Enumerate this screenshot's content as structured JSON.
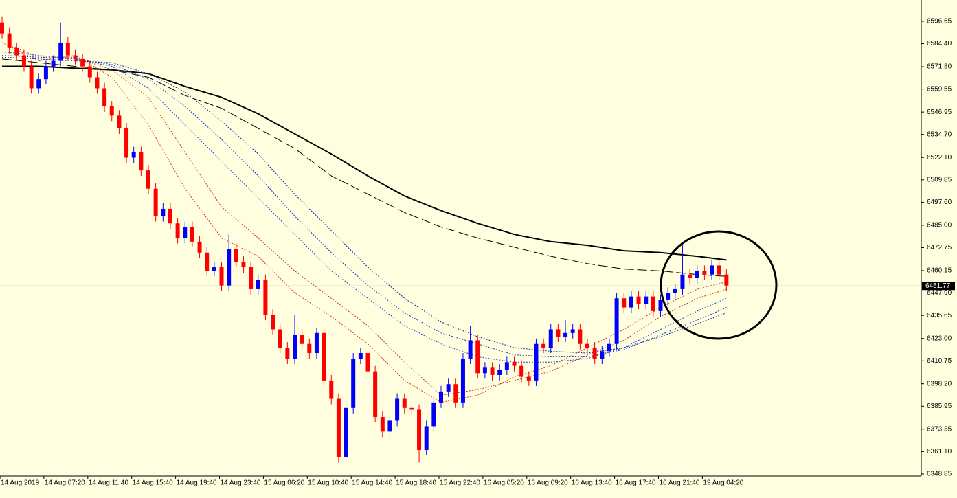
{
  "chart_data": {
    "type": "candlestick",
    "open": [
      6596,
      6590,
      6582,
      6578,
      6572,
      6560,
      6565,
      6572,
      6575,
      6585,
      6578,
      6576,
      6572,
      6566,
      6560,
      6550,
      6545,
      6538,
      6522,
      6525,
      6515,
      6505,
      6490,
      6494,
      6486,
      6478,
      6484,
      6476,
      6470,
      6460,
      6462,
      6452,
      6472,
      6465,
      6462,
      6450,
      6455,
      6436,
      6428,
      6418,
      6412,
      6425,
      6420,
      6415,
      6426,
      6400,
      6390,
      6358,
      6385,
      6412,
      6415,
      6405,
      6380,
      6372,
      6378,
      6390,
      6385,
      6384,
      6362,
      6375,
      6388,
      6394,
      6398,
      6388,
      6412,
      6422,
      6404,
      6407,
      6403,
      6406,
      6410,
      6408,
      6402,
      6400,
      6420,
      6418,
      6428,
      6424,
      6426,
      6428,
      6420,
      6418,
      6412,
      6416,
      6420,
      6445,
      6440,
      6446,
      6442,
      6446,
      6438,
      6444,
      6448,
      6450,
      6458,
      6456,
      6460,
      6458,
      6463,
      6458
    ],
    "high": [
      6599,
      6593,
      6585,
      6581,
      6575,
      6568,
      6575,
      6578,
      6596,
      6588,
      6581,
      6579,
      6575,
      6569,
      6563,
      6553,
      6548,
      6541,
      6528,
      6528,
      6518,
      6508,
      6497,
      6497,
      6489,
      6487,
      6487,
      6479,
      6473,
      6465,
      6465,
      6480,
      6475,
      6468,
      6465,
      6458,
      6458,
      6439,
      6431,
      6421,
      6436,
      6428,
      6423,
      6429,
      6429,
      6403,
      6393,
      6390,
      6415,
      6418,
      6418,
      6408,
      6383,
      6381,
      6393,
      6393,
      6388,
      6387,
      6378,
      6391,
      6397,
      6401,
      6401,
      6415,
      6430,
      6425,
      6410,
      6410,
      6409,
      6413,
      6413,
      6411,
      6405,
      6423,
      6423,
      6431,
      6431,
      6433,
      6431,
      6431,
      6423,
      6421,
      6419,
      6423,
      6448,
      6448,
      6449,
      6449,
      6449,
      6449,
      6447,
      6451,
      6453,
      6474,
      6461,
      6463,
      6463,
      6466,
      6466,
      6461
    ],
    "low": [
      6587,
      6579,
      6575,
      6569,
      6557,
      6557,
      6562,
      6569,
      6572,
      6575,
      6573,
      6569,
      6563,
      6557,
      6547,
      6542,
      6535,
      6519,
      6519,
      6512,
      6502,
      6487,
      6487,
      6483,
      6475,
      6475,
      6473,
      6467,
      6457,
      6457,
      6449,
      6449,
      6462,
      6459,
      6447,
      6447,
      6433,
      6425,
      6415,
      6409,
      6409,
      6417,
      6412,
      6412,
      6397,
      6387,
      6355,
      6355,
      6382,
      6409,
      6402,
      6377,
      6369,
      6369,
      6375,
      6382,
      6381,
      6355,
      6359,
      6372,
      6385,
      6391,
      6385,
      6385,
      6409,
      6401,
      6401,
      6400,
      6400,
      6403,
      6405,
      6399,
      6397,
      6397,
      6415,
      6415,
      6421,
      6421,
      6423,
      6417,
      6415,
      6409,
      6409,
      6413,
      6417,
      6437,
      6437,
      6439,
      6439,
      6435,
      6435,
      6441,
      6445,
      6447,
      6453,
      6453,
      6455,
      6455,
      6455,
      6449
    ],
    "close": [
      6590,
      6582,
      6578,
      6572,
      6560,
      6565,
      6572,
      6575,
      6585,
      6578,
      6576,
      6572,
      6566,
      6560,
      6550,
      6545,
      6538,
      6522,
      6525,
      6515,
      6505,
      6490,
      6494,
      6486,
      6478,
      6484,
      6476,
      6470,
      6460,
      6462,
      6452,
      6472,
      6465,
      6462,
      6450,
      6455,
      6436,
      6428,
      6418,
      6412,
      6425,
      6420,
      6415,
      6426,
      6400,
      6390,
      6358,
      6385,
      6412,
      6415,
      6405,
      6380,
      6372,
      6378,
      6390,
      6385,
      6384,
      6362,
      6375,
      6388,
      6394,
      6398,
      6388,
      6412,
      6422,
      6404,
      6407,
      6403,
      6406,
      6410,
      6408,
      6402,
      6400,
      6420,
      6418,
      6428,
      6424,
      6426,
      6428,
      6420,
      6418,
      6412,
      6416,
      6420,
      6445,
      6440,
      6446,
      6442,
      6446,
      6438,
      6444,
      6448,
      6450,
      6458,
      6456,
      6460,
      6458,
      6463,
      6458,
      6452
    ],
    "up_color": "#0000ff",
    "down_color": "#ff0000",
    "ma_x": [
      0,
      5,
      10,
      15,
      20,
      25,
      30,
      35,
      40,
      45,
      50,
      55,
      60,
      65,
      70,
      75,
      80,
      85,
      90,
      95,
      99
    ],
    "overlays": [
      {
        "color": "#000000",
        "dash": false,
        "values": [
          6572,
          6572,
          6571,
          6570,
          6568,
          6561,
          6555,
          6546,
          6535,
          6524,
          6512,
          6501,
          6493,
          6486,
          6480,
          6476,
          6474,
          6471,
          6470,
          6468,
          6466
        ]
      },
      {
        "color": "#000000",
        "dash": true,
        "values": [
          6576,
          6574,
          6572,
          6570,
          6566,
          6556,
          6549,
          6538,
          6527,
          6512,
          6502,
          6492,
          6484,
          6478,
          6473,
          6468,
          6464,
          6461,
          6460,
          6458,
          6457
        ]
      },
      {
        "color": "#d83a1a",
        "dash": true,
        "values": [
          6585,
          6575,
          6578,
          6566,
          6540,
          6505,
          6478,
          6468,
          6448,
          6435,
          6420,
          6400,
          6388,
          6392,
          6402,
          6408,
          6418,
          6428,
          6440,
          6450,
          6454
        ]
      },
      {
        "color": "#c0392b",
        "dash": true,
        "values": [
          6585,
          6577,
          6577,
          6570,
          6555,
          6525,
          6495,
          6478,
          6460,
          6445,
          6430,
          6410,
          6392,
          6395,
          6400,
          6405,
          6414,
          6422,
          6435,
          6445,
          6450
        ]
      },
      {
        "color": "#2040e0",
        "dash": true,
        "values": [
          6580,
          6578,
          6576,
          6572,
          6560,
          6540,
          6520,
          6500,
          6480,
          6460,
          6445,
          6430,
          6420,
          6413,
          6410,
          6410,
          6412,
          6418,
          6428,
          6438,
          6445
        ]
      },
      {
        "color": "#1030c8",
        "dash": true,
        "values": [
          6578,
          6577,
          6576,
          6573,
          6565,
          6550,
          6532,
          6512,
          6490,
          6470,
          6452,
          6437,
          6426,
          6420,
          6414,
          6413,
          6413,
          6417,
          6425,
          6433,
          6440
        ]
      },
      {
        "color": "#0020b0",
        "dash": true,
        "values": [
          6577,
          6576,
          6575,
          6574,
          6568,
          6558,
          6542,
          6524,
          6502,
          6482,
          6462,
          6445,
          6432,
          6424,
          6418,
          6416,
          6415,
          6418,
          6424,
          6431,
          6437
        ]
      }
    ],
    "current_price": 6451.77,
    "ylim": [
      6347.7,
      6608.3
    ],
    "yticks": [
      6596.65,
      {
        "value": 6584.4,
        "label": "6584.40"
      },
      {
        "value": 6571.8,
        "label": "6571.80"
      },
      6559.55,
      6546.95,
      {
        "value": 6534.7,
        "label": "6534.70"
      },
      {
        "value": 6522.1,
        "label": "6522.10"
      },
      6509.85,
      {
        "value": 6497.6,
        "label": "6497.60"
      },
      {
        "value": 6485,
        "label": "6485.00"
      },
      6472.75,
      6460.15,
      {
        "value": 6447.9,
        "label": "6447.90"
      },
      6435.65,
      {
        "value": 6423,
        "label": "6423.00"
      },
      6410.75,
      {
        "value": 6398.2,
        "label": "6398.20"
      },
      6385.95,
      6373.35,
      {
        "value": 6361.1,
        "label": "6361.10"
      },
      6348.85
    ],
    "xticks": [
      {
        "value": 0,
        "label": "14 Aug 2019"
      },
      {
        "value": 6,
        "label": "14 Aug 07:20"
      },
      {
        "value": 12,
        "label": "14 Aug 11:40"
      },
      {
        "value": 18,
        "label": "14 Aug 15:40"
      },
      {
        "value": 24,
        "label": "14 Aug 19:40"
      },
      {
        "value": 30,
        "label": "14 Aug 23:40"
      },
      {
        "value": 36,
        "label": "15 Aug 06:20"
      },
      {
        "value": 42,
        "label": "15 Aug 10:40"
      },
      {
        "value": 48,
        "label": "15 Aug 14:40"
      },
      {
        "value": 54,
        "label": "15 Aug 18:40"
      },
      {
        "value": 60,
        "label": "15 Aug 22:40"
      },
      {
        "value": 66,
        "label": "16 Aug 05:20"
      },
      {
        "value": 72,
        "label": "16 Aug 09:20"
      },
      {
        "value": 78,
        "label": "16 Aug 13:40"
      },
      {
        "value": 84,
        "label": "16 Aug 17:40"
      },
      {
        "value": 90,
        "label": "16 Aug 21:40"
      },
      {
        "value": 96,
        "label": "19 Aug 04:20"
      }
    ]
  }
}
